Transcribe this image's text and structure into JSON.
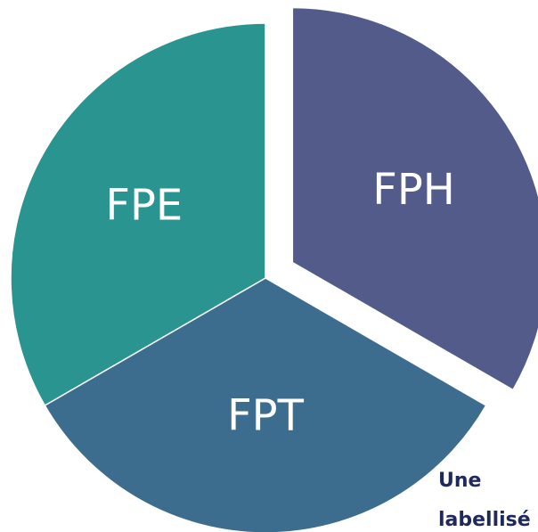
{
  "chart_data": {
    "type": "pie",
    "categories": [
      "FPH",
      "FPT",
      "FPE"
    ],
    "values": [
      1,
      1,
      1
    ],
    "colors": [
      "#525b8a",
      "#3d6d8e",
      "#2a9490"
    ],
    "explode": [
      true,
      false,
      false
    ],
    "annotation": [
      "Une",
      "labellisé"
    ]
  }
}
